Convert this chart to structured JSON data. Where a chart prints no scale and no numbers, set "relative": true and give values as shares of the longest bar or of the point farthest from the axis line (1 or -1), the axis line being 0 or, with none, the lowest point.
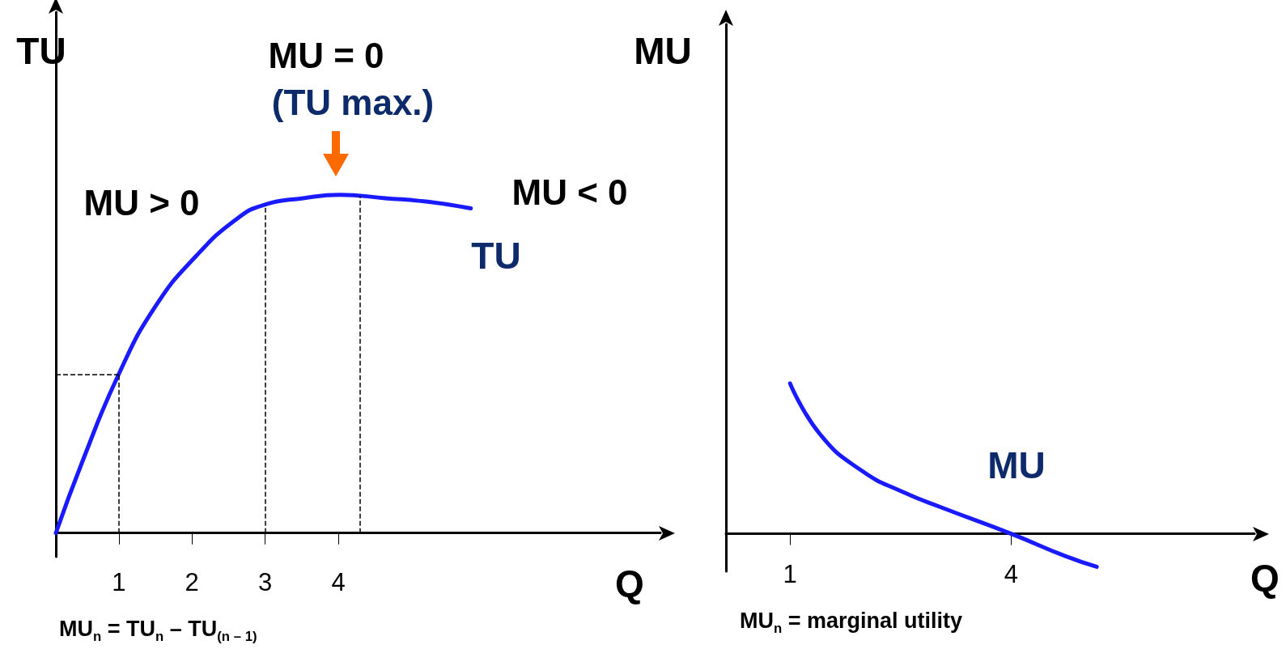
{
  "chart_data": [
    {
      "type": "line",
      "relative": true,
      "xlabel": "Q",
      "ylabel": "TU",
      "legend": false,
      "grid": false,
      "marker": "none",
      "xlim": [
        0.14,
        8.4
      ],
      "xticks": [
        1,
        2,
        3,
        4
      ],
      "x": [
        0.14,
        0.5,
        1.0,
        1.5,
        2.06,
        2.62,
        2.98,
        3.52,
        4.02,
        4.64,
        5.2,
        5.81
      ],
      "series": [
        {
          "name": "TU",
          "color": "#1a1aff",
          "values": [
            0,
            0.21,
            0.47,
            0.67,
            0.82,
            0.93,
            0.97,
            0.99,
            1,
            0.99,
            0.98,
            0.96
          ]
        }
      ],
      "ref_lines": [
        {
          "axis": "x",
          "value": 1
        },
        {
          "axis": "x",
          "value": 3
        },
        {
          "axis": "x",
          "value": 4.3
        },
        {
          "axis": "y",
          "value": 0.47
        }
      ],
      "annotations": [
        "MU = 0",
        "(TU max.)",
        "MU > 0",
        "MU < 0",
        "MU$_{n}$ = TU$_{n}$ – TU$_{(n – 1)}$"
      ]
    },
    {
      "type": "line",
      "relative": true,
      "xlabel": "Q",
      "ylabel": "MU",
      "legend": false,
      "grid": false,
      "marker": "none",
      "xlim": [
        0.13,
        7.3
      ],
      "xticks": [
        1,
        4
      ],
      "x": [
        1.0,
        1.41,
        1.97,
        2.52,
        3.08,
        4.0,
        4.74,
        5.16
      ],
      "series": [
        {
          "name": "MU",
          "color": "#1a1aff",
          "values": [
            1,
            0.66,
            0.42,
            0.28,
            0.17,
            0,
            -0.15,
            -0.22
          ]
        }
      ],
      "annotations": [
        "MU$_{n}$ = marginal utility"
      ]
    }
  ]
}
